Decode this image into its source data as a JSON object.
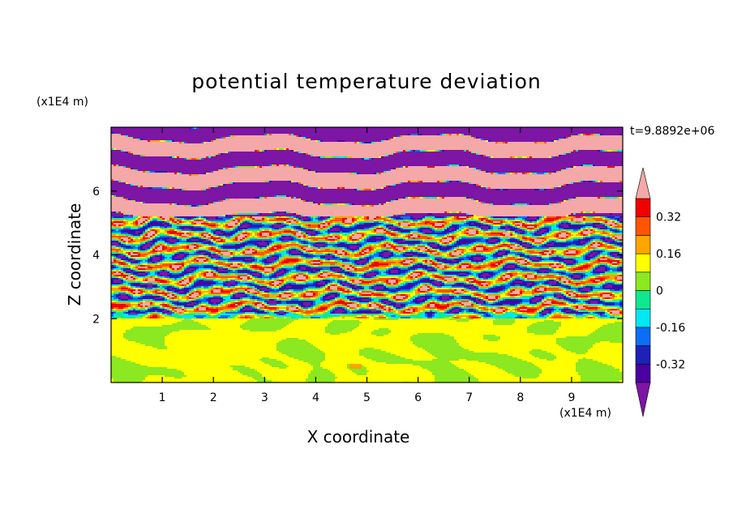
{
  "chart_data": {
    "type": "heatmap",
    "title": "potential temperature deviation",
    "xlabel": "X coordinate",
    "ylabel": "Z coordinate",
    "x_unit": "(x1E4 m)",
    "y_unit": "(x1E4 m)",
    "time_label": "t=9.8892e+06",
    "xlim": [
      0,
      10
    ],
    "ylim": [
      0,
      8
    ],
    "x_ticks": [
      "1",
      "2",
      "3",
      "4",
      "5",
      "6",
      "7",
      "8",
      "9"
    ],
    "y_ticks": [
      "2",
      "4",
      "6"
    ],
    "colorbar": {
      "levels": [
        -0.4,
        -0.32,
        -0.24,
        -0.16,
        -0.08,
        0,
        0.08,
        0.16,
        0.24,
        0.32,
        0.4
      ],
      "labels": [
        "0.32",
        "0.16",
        "0",
        "-0.16",
        "-0.32"
      ],
      "colors_low_to_high": [
        "#7d15a5",
        "#4b00a0",
        "#1b22b5",
        "#0d6ef5",
        "#00e8f0",
        "#10e890",
        "#8ce820",
        "#ffff00",
        "#ffa500",
        "#ff5500",
        "#f00000",
        "#f5a8a8"
      ],
      "extend": "both"
    },
    "regions": [
      {
        "z_range": [
          0,
          2
        ],
        "pattern": "green and light-green blobs"
      },
      {
        "z_range": [
          2,
          5.2
        ],
        "pattern": "turbulent multicolor horizontal streaks"
      },
      {
        "z_range": [
          5.2,
          8
        ],
        "pattern": "alternating purple and pink horizontal bands"
      }
    ]
  }
}
